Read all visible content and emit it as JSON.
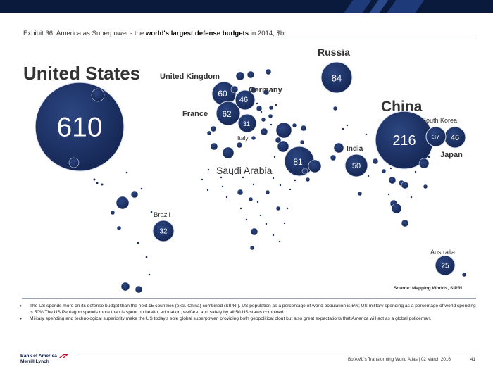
{
  "header": {
    "title_prefix": "Exhibit 36: America as Superpower - the ",
    "title_bold": "world's largest defense budgets",
    "title_suffix": " in 2014, $bn"
  },
  "map": {
    "bubble_color": "#1b2f5e",
    "labeled_bubbles": [
      {
        "country": "United States",
        "value": "610"
      },
      {
        "country": "China",
        "value": "216"
      },
      {
        "country": "Russia",
        "value": "84"
      },
      {
        "country": "Saudi Arabia",
        "value": "81"
      },
      {
        "country": "France",
        "value": "62"
      },
      {
        "country": "United Kingdom",
        "value": "60"
      },
      {
        "country": "India",
        "value": "50"
      },
      {
        "country": "Germany",
        "value": "46"
      },
      {
        "country": "Japan",
        "value": "46"
      },
      {
        "country": "South Korea",
        "value": "37"
      },
      {
        "country": "Brazil",
        "value": "32"
      },
      {
        "country": "Italy",
        "value": "31"
      },
      {
        "country": "Australia",
        "value": "25"
      }
    ]
  },
  "source": "Source: Mapping Worlds, SIPRI",
  "bullets": [
    "The US spends more on its defense budget than the next 15 countries (excl. China) combined (SIPRI). US population as a percentage of world population is 5%; US military spending as a percentage of world spending is 50% The US Pentagon spends more than is spent on health, education, welfare, and safety by all 50 US states combined.",
    "Military spending and technological superiority make the US today's sole global superpower, providing both geopolitical clout but also great expectations that America will act as a global policeman."
  ],
  "footer": {
    "logo_line1": "Bank of America",
    "logo_line2": "Merrill Lynch",
    "report": "BofAML's Transforming World Atlas",
    "date": "02 March 2016",
    "separator": "|",
    "page": "41"
  }
}
